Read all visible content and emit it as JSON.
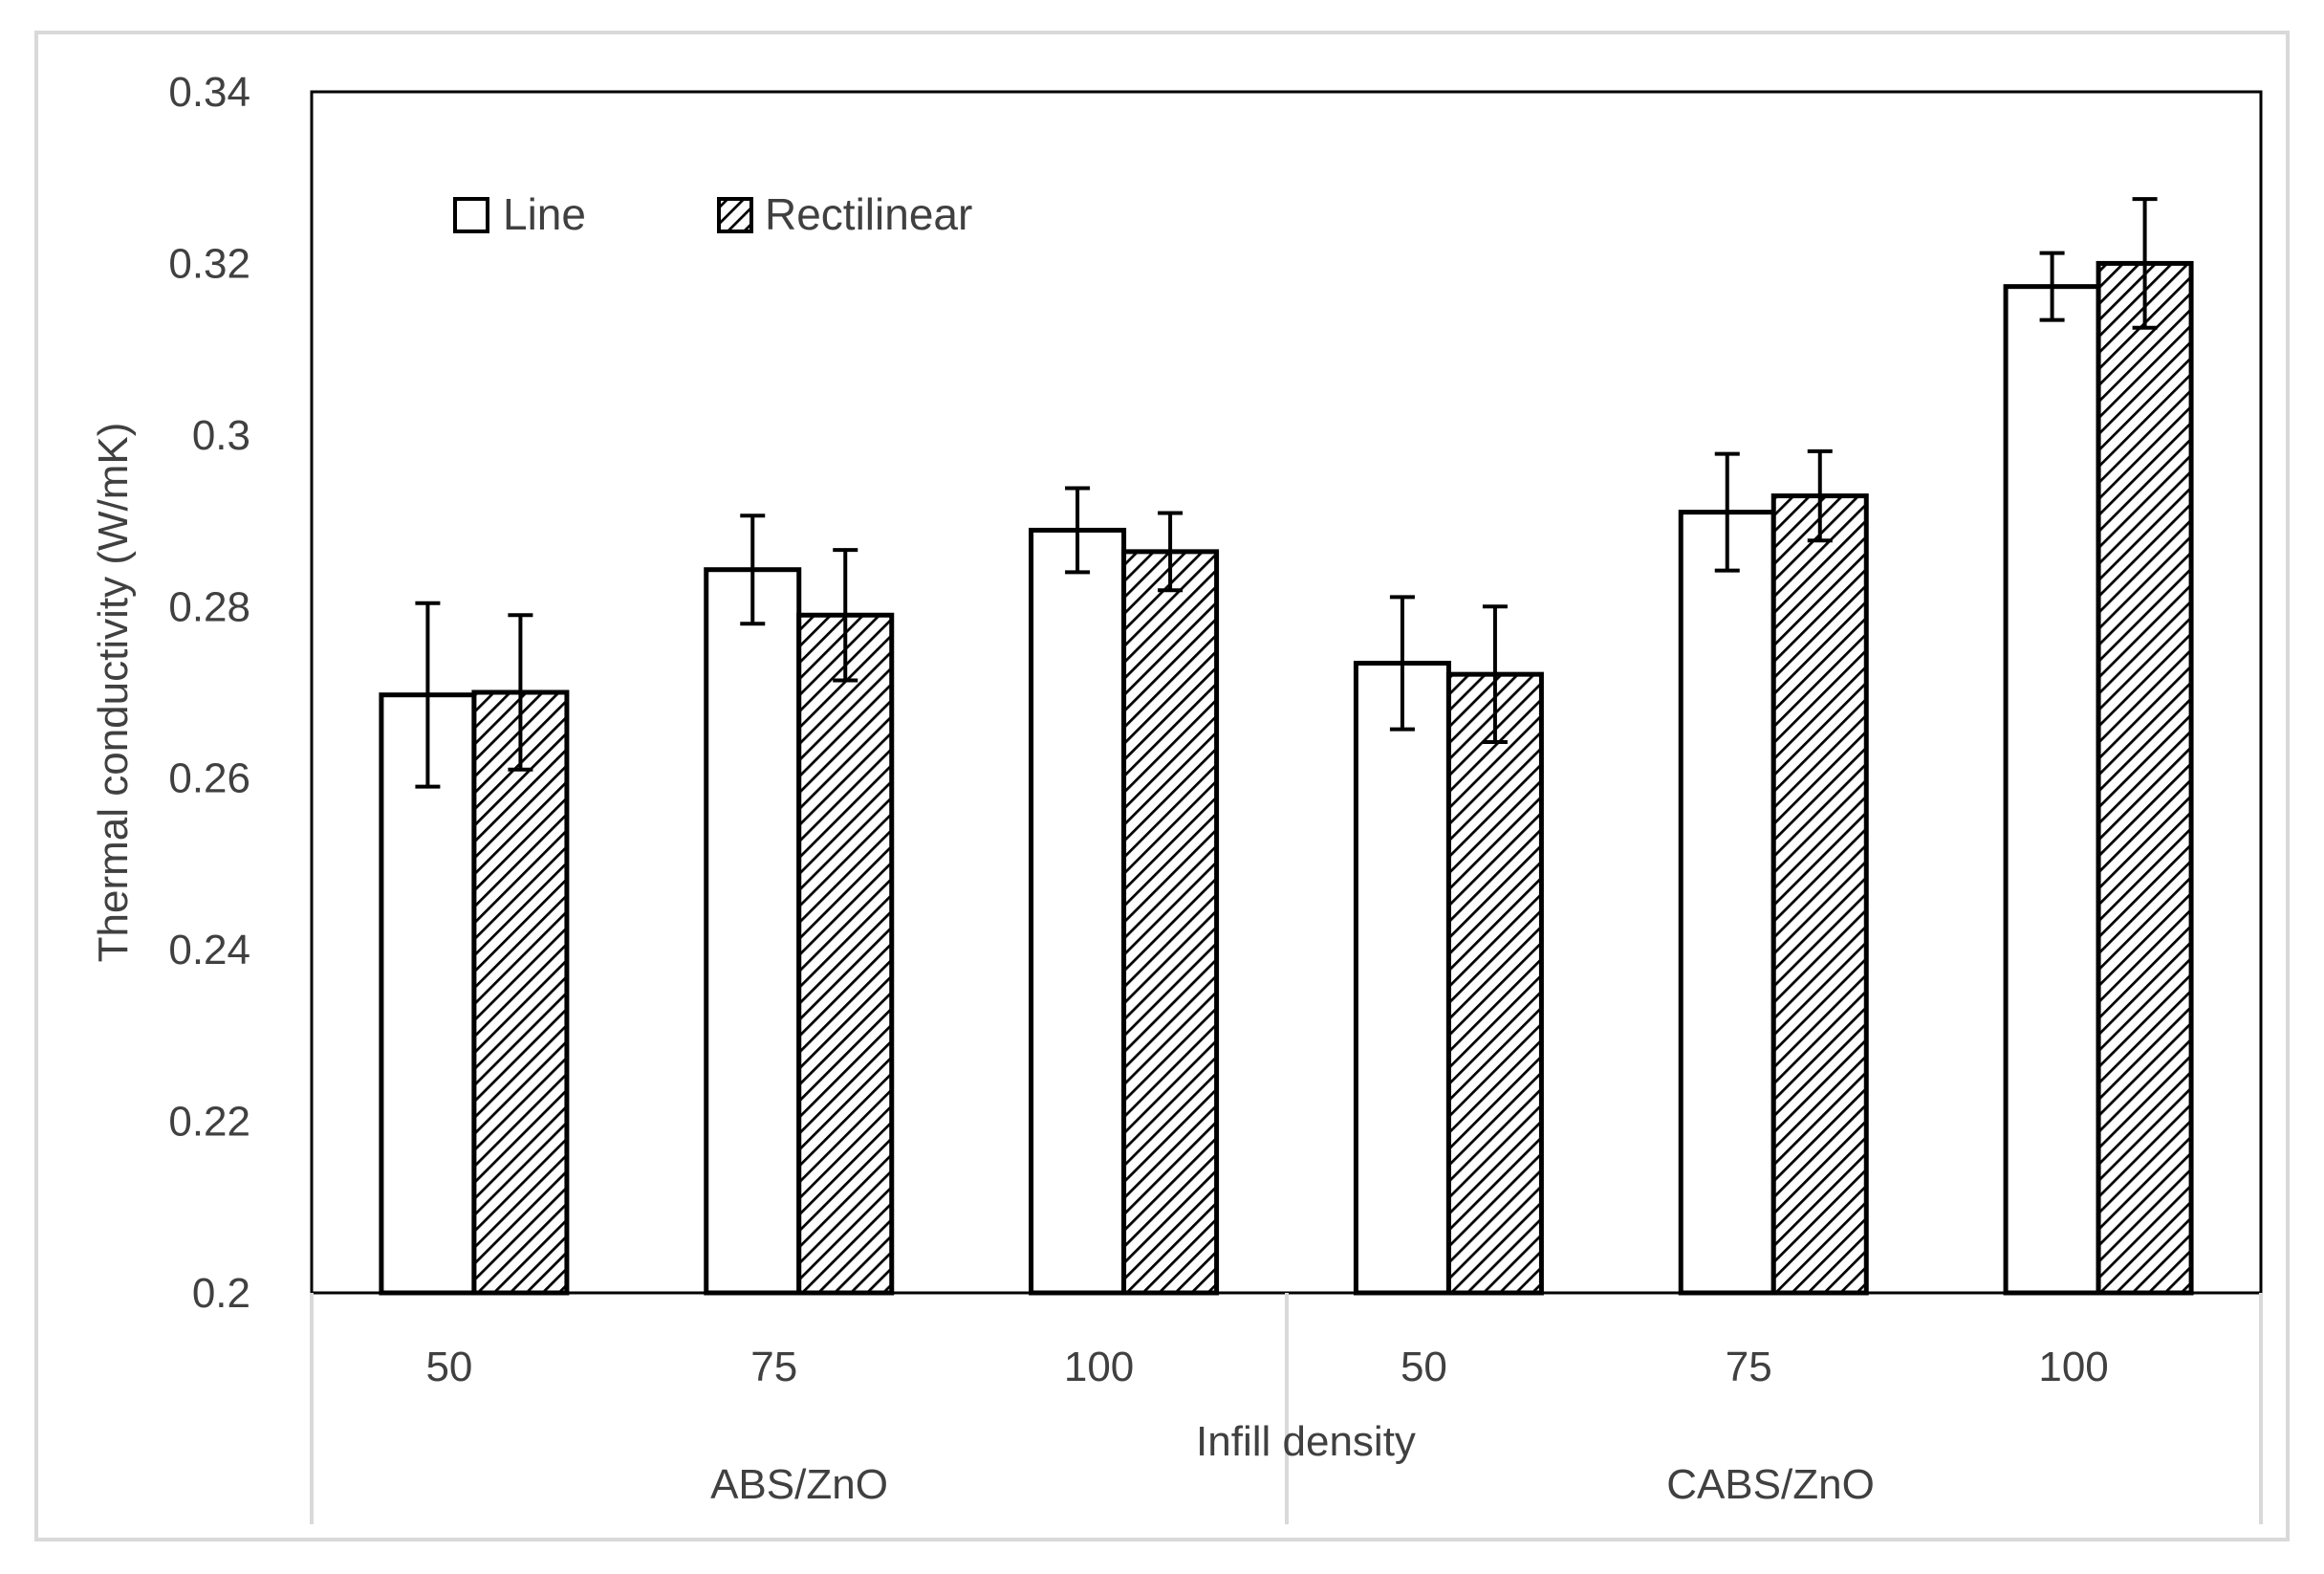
{
  "chart_data": {
    "type": "bar",
    "title": "",
    "xlabel": "Infill density",
    "ylabel": "Thermal conductivity (W/mK)",
    "ylim": [
      0.2,
      0.34
    ],
    "y_ticks": [
      "0.2",
      "0.22",
      "0.24",
      "0.26",
      "0.28",
      "0.3",
      "0.32",
      "0.34"
    ],
    "y_tick_values": [
      0.2,
      0.22,
      0.24,
      0.26,
      0.28,
      0.3,
      0.32,
      0.34
    ],
    "groups": [
      {
        "label": "ABS/ZnO",
        "categories": [
          "50",
          "75",
          "100"
        ]
      },
      {
        "label": "CABS/ZnO",
        "categories": [
          "50",
          "75",
          "100"
        ]
      }
    ],
    "series": [
      {
        "name": "Line",
        "fill": "white",
        "values": [
          0.2697,
          0.2843,
          0.2889,
          0.2734,
          0.291,
          0.3173
        ],
        "errors": [
          0.0107,
          0.0063,
          0.0049,
          0.0077,
          0.0068,
          0.0039
        ]
      },
      {
        "name": "Rectilinear",
        "fill": "hatch",
        "values": [
          0.27,
          0.279,
          0.2864,
          0.2721,
          0.2929,
          0.32
        ],
        "errors": [
          0.009,
          0.0076,
          0.0045,
          0.0079,
          0.0052,
          0.0075
        ]
      }
    ],
    "legend_position": "top-left",
    "grid": false
  },
  "colors": {
    "bar_stroke": "#000000",
    "hatch": "#000000",
    "text": "#404040",
    "frame": "#d9d9d9"
  }
}
